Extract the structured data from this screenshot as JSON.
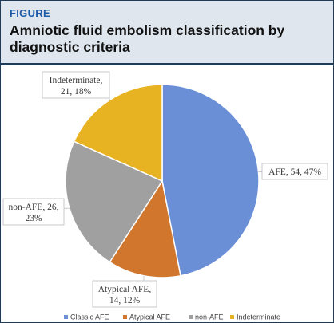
{
  "figure": {
    "label": "FIGURE",
    "title": "Amniotic fluid embolism classification by diagnostic criteria"
  },
  "chart_data": {
    "type": "pie",
    "title": "Amniotic fluid embolism classification by diagnostic criteria",
    "slices": [
      {
        "label_lines": [
          "AFE, 54, 47%"
        ],
        "value": 54,
        "percent": 47,
        "color": "#6a8fd6"
      },
      {
        "label_lines": [
          "Atypical AFE,",
          "14, 12%"
        ],
        "value": 14,
        "percent": 12,
        "color": "#d0762d"
      },
      {
        "label_lines": [
          "non-AFE, 26,",
          "23%"
        ],
        "value": 26,
        "percent": 23,
        "color": "#a0a0a0"
      },
      {
        "label_lines": [
          "Indeterminate,",
          "21, 18%"
        ],
        "value": 21,
        "percent": 18,
        "color": "#e8b323"
      }
    ],
    "legend": {
      "position": "bottom",
      "entries": [
        {
          "name": "Classic AFE",
          "color": "#6a8fd6"
        },
        {
          "name": "Atypical AFE",
          "color": "#d0762d"
        },
        {
          "name": "non-AFE",
          "color": "#a0a0a0"
        },
        {
          "name": "Indeterminate",
          "color": "#e8b323"
        }
      ]
    }
  }
}
